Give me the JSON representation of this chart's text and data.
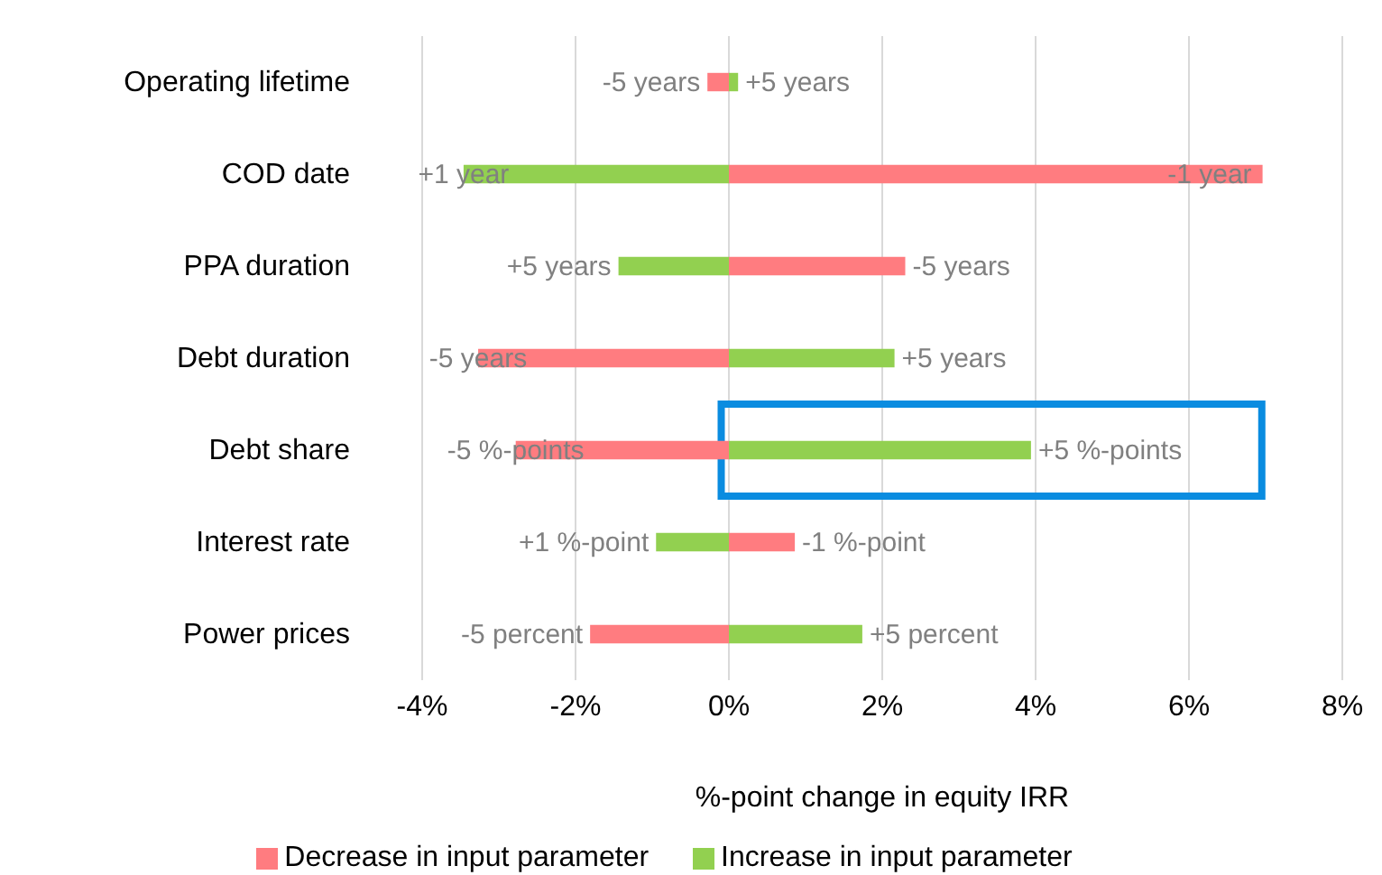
{
  "chart_data": {
    "type": "bar",
    "orientation": "horizontal",
    "stacked": true,
    "categories": [
      "Operating lifetime",
      "COD date",
      "PPA duration",
      "Debt duration",
      "Debt share",
      "Interest rate",
      "Power prices"
    ],
    "series": [
      {
        "name": "Decrease in input parameter",
        "color": "#ff7c80",
        "values": [
          -0.28,
          6.96,
          2.3,
          -3.27,
          -2.78,
          0.86,
          -1.81
        ]
      },
      {
        "name": "Increase in input parameter",
        "color": "#92d050",
        "values": [
          0.12,
          -3.46,
          -1.44,
          2.16,
          3.94,
          -0.95,
          1.74
        ]
      }
    ],
    "annotations": [
      {
        "text": "-5 years",
        "x": -0.28,
        "y": "Operating lifetime"
      },
      {
        "text": "-1 year",
        "x": 6.96,
        "y": "COD date"
      },
      {
        "text": "-5 years",
        "x": 2.3,
        "y": "PPA duration"
      },
      {
        "text": "-5 years",
        "x": -3.27,
        "y": "Debt duration"
      },
      {
        "text": "-5 %-points",
        "x": -2.78,
        "y": "Debt share"
      },
      {
        "text": "-1 %-point",
        "x": 0.86,
        "y": "Interest rate"
      },
      {
        "text": "-5 percent",
        "x": -1.81,
        "y": "Power prices"
      },
      {
        "text": "+5 years",
        "x": 0.12,
        "y": "Operating lifetime"
      },
      {
        "text": "+1 year",
        "x": -3.46,
        "y": "COD date"
      },
      {
        "text": "+5 years",
        "x": -1.44,
        "y": "PPA duration"
      },
      {
        "text": "+5 years",
        "x": 2.16,
        "y": "Debt duration"
      },
      {
        "text": "+5 %-points",
        "x": 3.94,
        "y": "Debt share"
      },
      {
        "text": "+1 %-point",
        "x": -0.95,
        "y": "Interest rate"
      },
      {
        "text": "+5 percent",
        "x": 1.74,
        "y": "Power prices"
      }
    ],
    "xlabel": "%-point change in equity IRR",
    "xlim": [
      -4,
      8
    ],
    "xticks": [
      {
        "value": -4,
        "label": "-4%"
      },
      {
        "value": -2,
        "label": "-2%"
      },
      {
        "value": 0,
        "label": "0%"
      },
      {
        "value": 2,
        "label": "2%"
      },
      {
        "value": 4,
        "label": "4%"
      },
      {
        "value": 6,
        "label": "6%"
      },
      {
        "value": 8,
        "label": "8%"
      }
    ],
    "grid": "x",
    "legend": "bottom"
  }
}
